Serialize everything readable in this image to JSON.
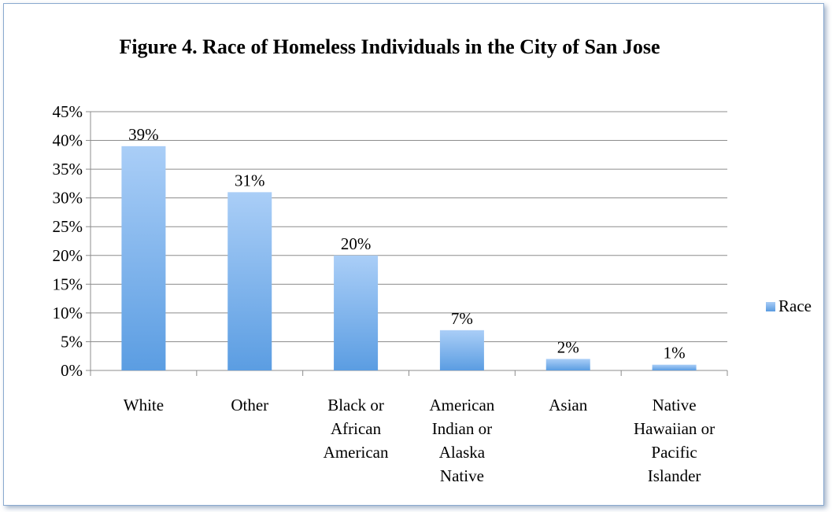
{
  "chart_data": {
    "type": "bar",
    "title": "Figure 4. Race of Homeless Individuals in the City of San Jose",
    "categories": [
      [
        "White"
      ],
      [
        "Other"
      ],
      [
        "Black or",
        "African",
        "American"
      ],
      [
        "American",
        "Indian or",
        "Alaska",
        "Native"
      ],
      [
        "Asian"
      ],
      [
        "Native",
        "Hawaiian or",
        "Pacific",
        "Islander"
      ]
    ],
    "series": [
      {
        "name": "Race",
        "values": [
          39,
          31,
          20,
          7,
          2,
          1
        ]
      }
    ],
    "data_labels": [
      "39%",
      "31%",
      "20%",
      "7%",
      "2%",
      "1%"
    ],
    "ylim": [
      0,
      45
    ],
    "yticks": [
      "0%",
      "5%",
      "10%",
      "15%",
      "20%",
      "25%",
      "30%",
      "35%",
      "40%",
      "45%"
    ],
    "grid": true,
    "legend_position": "right",
    "colors": {
      "bar_top": "#aacef7",
      "bar_bottom": "#5b9de2",
      "grid": "#8c8c8c"
    }
  }
}
